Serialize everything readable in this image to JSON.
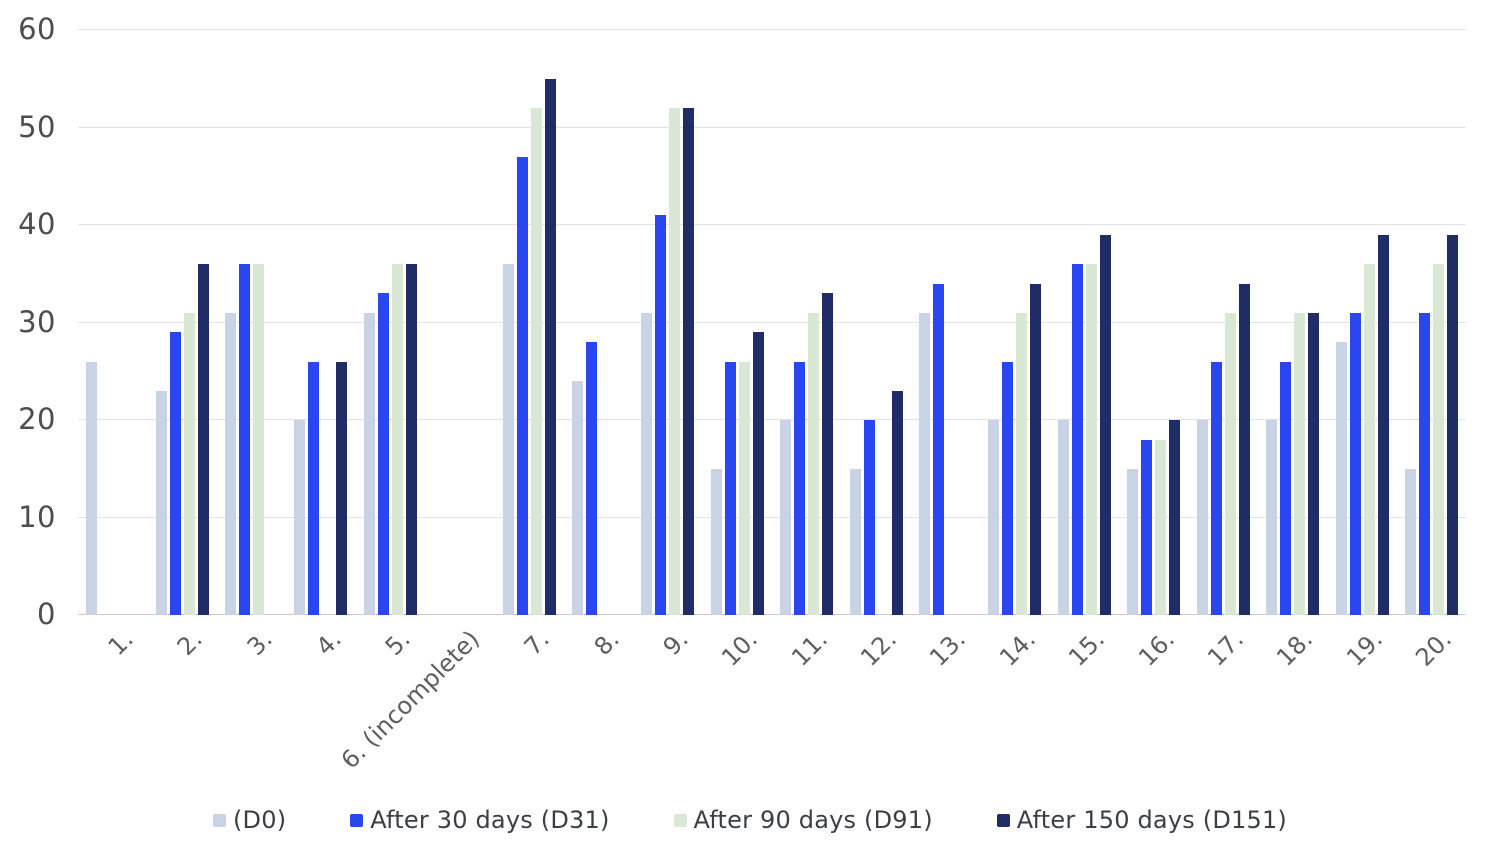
{
  "chart_data": {
    "type": "bar",
    "title": "",
    "xlabel": "",
    "ylabel": "",
    "ylim": [
      0,
      60
    ],
    "yticks": [
      0,
      10,
      20,
      30,
      40,
      50,
      60
    ],
    "grid": true,
    "legend_position": "bottom",
    "categories": [
      "1.",
      "2.",
      "3.",
      "4.",
      "5.",
      "6. (incomplete)",
      "7.",
      "8.",
      "9.",
      "10.",
      "11.",
      "12.",
      "13.",
      "14.",
      "15.",
      "16.",
      "17.",
      "18.",
      "19.",
      "20."
    ],
    "series": [
      {
        "name": "(D0)",
        "color": "#c9d3e6",
        "values": [
          26,
          23,
          31,
          20,
          31,
          null,
          36,
          24,
          31,
          15,
          20,
          15,
          31,
          20,
          20,
          15,
          20,
          20,
          28,
          15
        ]
      },
      {
        "name": "After 30 days (D31)",
        "color": "#2a46f0",
        "values": [
          null,
          29,
          36,
          26,
          33,
          null,
          47,
          28,
          41,
          26,
          26,
          20,
          34,
          26,
          36,
          18,
          26,
          26,
          31,
          31
        ]
      },
      {
        "name": "After 90 days (D91)",
        "color": "#d9e8d4",
        "values": [
          null,
          31,
          36,
          null,
          36,
          null,
          52,
          null,
          52,
          26,
          31,
          null,
          null,
          31,
          36,
          18,
          31,
          31,
          36,
          36
        ]
      },
      {
        "name": "After 150 days (D151)",
        "color": "#1f2c66",
        "values": [
          null,
          36,
          null,
          26,
          36,
          null,
          55,
          null,
          52,
          29,
          33,
          23,
          null,
          34,
          39,
          20,
          34,
          31,
          39,
          39
        ]
      }
    ]
  },
  "colors": {
    "background": "#ffffff",
    "gridline": "#e2e2e2",
    "axis_line": "#c9c9c9",
    "y_tick_text": "#4d4d4d",
    "x_tick_text": "#5e5e5e",
    "legend_text": "#3a3f45"
  }
}
